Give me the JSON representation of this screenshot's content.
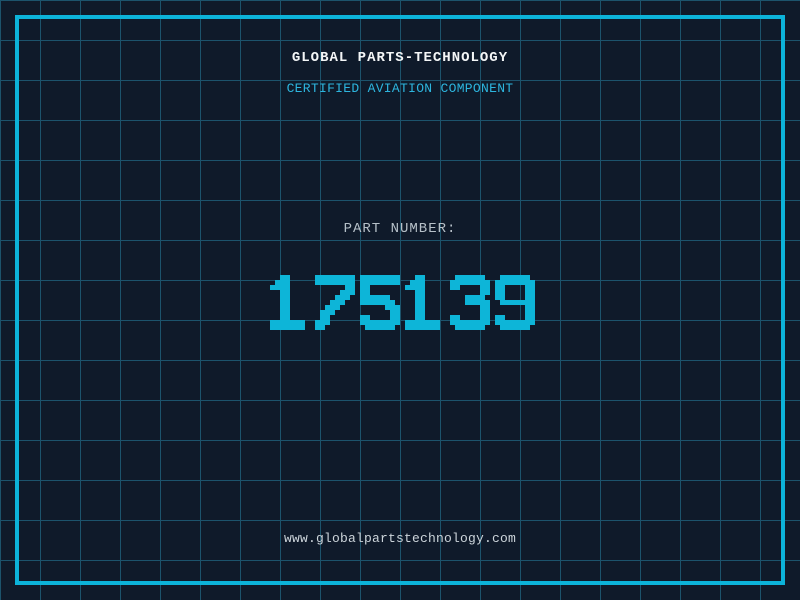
{
  "document": {
    "company": "GLOBAL PARTS-TECHNOLOGY",
    "certification": "CERTIFIED AVIATION COMPONENT",
    "part_label": "PART NUMBER:",
    "part_number": "175139",
    "website": "www.globalpartstechnology.com"
  },
  "colors": {
    "background": "#0f1a2a",
    "grid_line": "#1c536c",
    "frame_accent": "#0cb3da",
    "part_number_accent": "#0db5d8",
    "certification_accent": "#2db5de",
    "company_text": "#f4f6f7",
    "part_label_text": "#b6c0c8",
    "website_text": "#ccd4da"
  }
}
